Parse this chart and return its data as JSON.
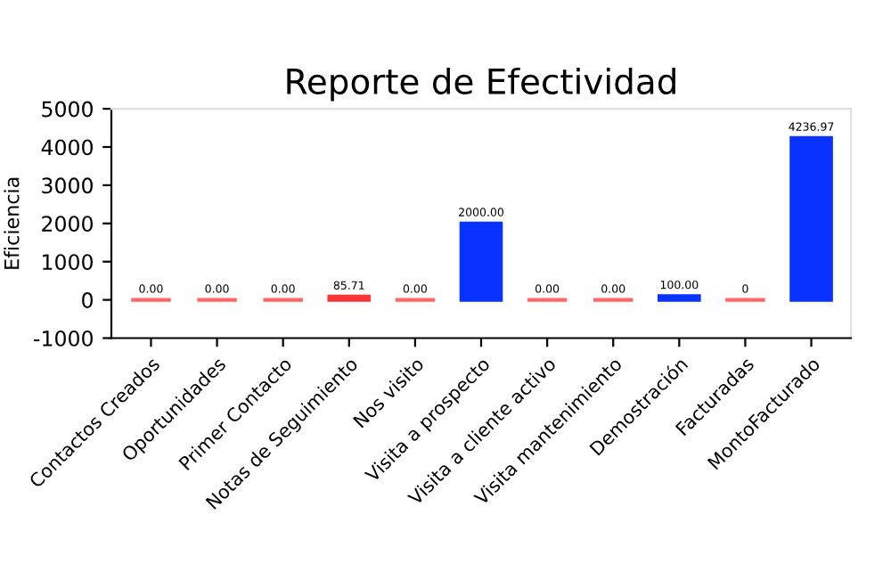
{
  "chart_data": {
    "type": "bar",
    "title": "Reporte de Efectividad",
    "ylabel": "Eficiencia",
    "categories": [
      "Contactos Creados",
      "Oportunidades",
      "Primer Contacto",
      "Notas de Seguimiento",
      "Nos visito",
      "Visita a prospecto",
      "Visita a cliente activo",
      "Visita mantenimiento",
      "Demostración",
      "Facturadas",
      "MontoFacturado"
    ],
    "values": [
      0,
      0,
      0,
      85.71,
      0,
      2000,
      0,
      0,
      100,
      0,
      4236.97
    ],
    "colors": [
      "#ff6666",
      "#ff6666",
      "#ff6666",
      "#ff3333",
      "#ff6666",
      "#0a32ff",
      "#ff6666",
      "#ff6666",
      "#0a32ff",
      "#ff6666",
      "#0a32ff"
    ],
    "value_labels": [
      "0.00",
      "0.00",
      "0.00",
      "85.71",
      "0.00",
      "2000.00",
      "0.00",
      "0.00",
      "100.00",
      "0",
      "4236.97"
    ],
    "ylim": [
      -1000,
      5000
    ],
    "yticks": [
      -1000,
      0,
      1000,
      2000,
      3000,
      4000,
      5000
    ],
    "grid": false,
    "legend": false
  }
}
